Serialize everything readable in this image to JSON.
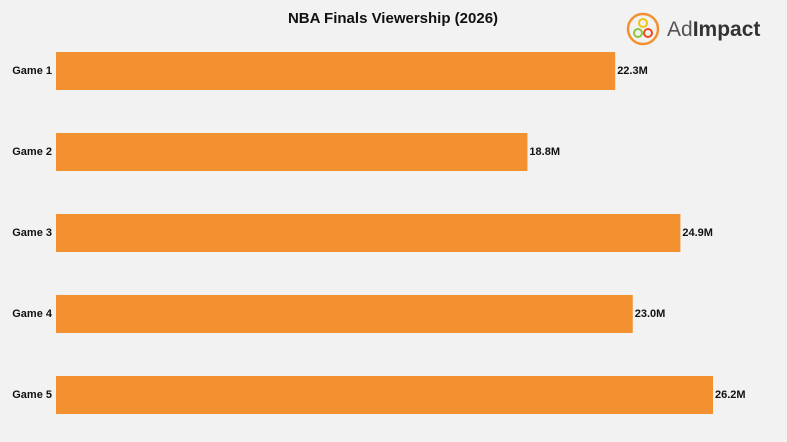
{
  "chart_data": {
    "type": "hbar",
    "title": "NBA Finals Viewership (2026)",
    "categories": [
      "Game 1",
      "Game 2",
      "Game 3",
      "Game 4",
      "Game 5"
    ],
    "values": [
      22.3,
      18.8,
      24.9,
      23.0,
      26.2
    ],
    "value_labels": [
      "22.3M",
      "18.8M",
      "24.9M",
      "23.0M",
      "26.2M"
    ],
    "color": "#f39130"
  },
  "logo": {
    "prefix": "Ad",
    "suffix": "Impact"
  }
}
